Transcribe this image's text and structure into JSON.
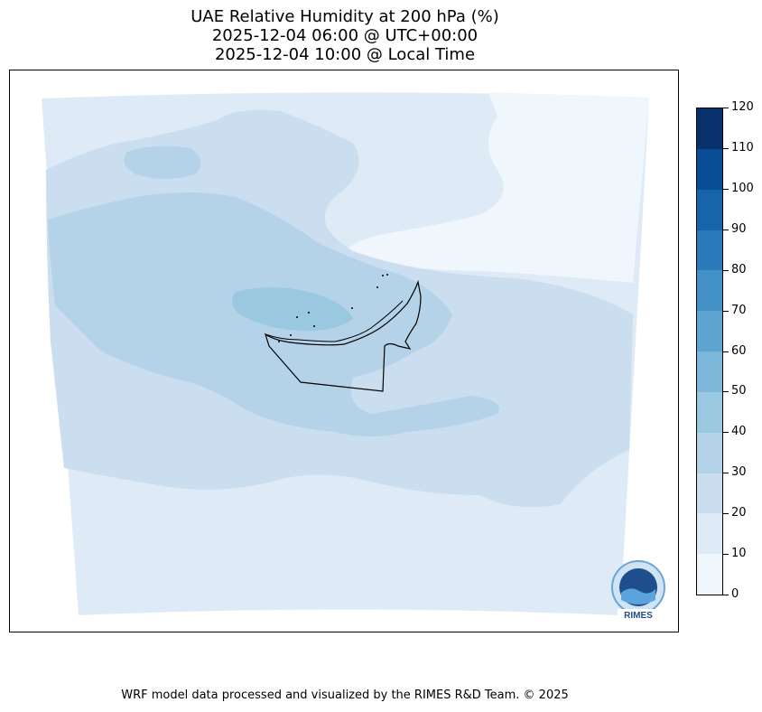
{
  "title": {
    "line1": "UAE Relative Humidity at 200 hPa (%)",
    "line2": "2025-12-04 06:00 @ UTC+00:00",
    "line3": "2025-12-04 10:00 @ Local Time"
  },
  "colorbar": {
    "levels": [
      0,
      10,
      20,
      30,
      40,
      50,
      60,
      70,
      80,
      90,
      100,
      110,
      120
    ],
    "colors": [
      "#eff6fc",
      "#deebf7",
      "#cadef0",
      "#b4d3e8",
      "#9ac8e0",
      "#7db8da",
      "#5da4d0",
      "#4391c6",
      "#2b7bba",
      "#1764ab",
      "#0a4d97",
      "#08306b"
    ],
    "tick_labels": [
      "0",
      "10",
      "20",
      "30",
      "40",
      "50",
      "60",
      "70",
      "80",
      "90",
      "100",
      "110",
      "120"
    ]
  },
  "logo": {
    "icon": "rimes-logo-icon",
    "text": "RIMES"
  },
  "footer": "WRF model data processed and visualized by the RIMES R&D Team. © 2025"
}
